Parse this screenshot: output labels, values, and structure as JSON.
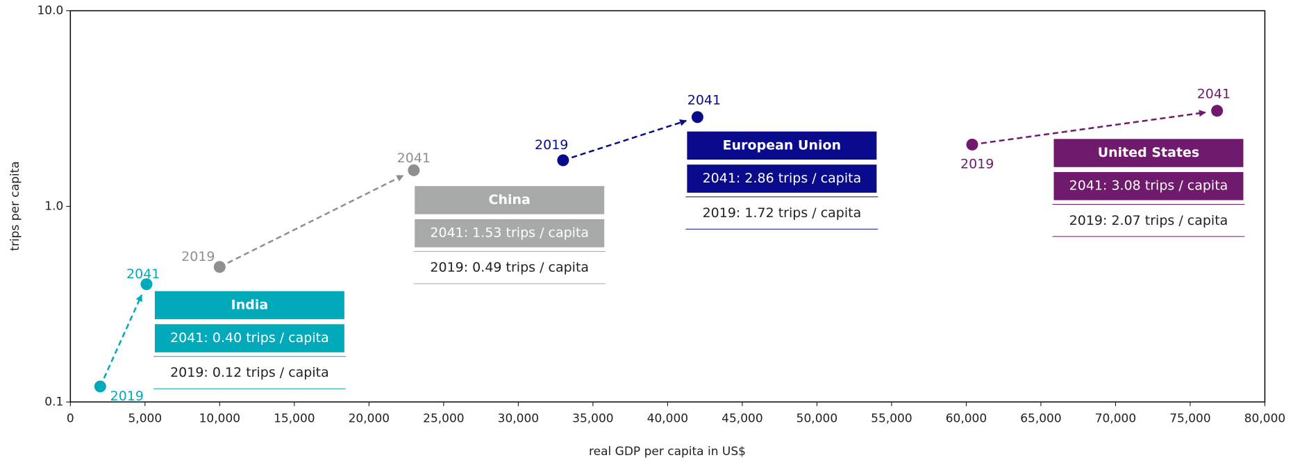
{
  "chart_data": {
    "type": "scatter",
    "x_label": "real GDP per capita in US$",
    "y_label": "trips per capita",
    "xlim": [
      0,
      80000
    ],
    "xticks": [
      0,
      {
        "value": 5000,
        "label": "5,000"
      },
      {
        "value": 10000,
        "label": "10,000"
      },
      {
        "value": 15000,
        "label": "15,000"
      },
      {
        "value": 20000,
        "label": "20,000"
      },
      {
        "value": 25000,
        "label": "25,000"
      },
      {
        "value": 30000,
        "label": "30,000"
      },
      {
        "value": 35000,
        "label": "35,000"
      },
      {
        "value": 40000,
        "label": "40,000"
      },
      {
        "value": 45000,
        "label": "45,000"
      },
      {
        "value": 50000,
        "label": "50,000"
      },
      {
        "value": 55000,
        "label": "55,000"
      },
      {
        "value": 60000,
        "label": "60,000"
      },
      {
        "value": 65000,
        "label": "65,000"
      },
      {
        "value": 70000,
        "label": "70,000"
      },
      {
        "value": 75000,
        "label": "75,000"
      },
      {
        "value": 80000,
        "label": "80,000"
      }
    ],
    "ylim": [
      0.1,
      10
    ],
    "yticks": [
      0.1,
      {
        "value": 1,
        "label": "1.0"
      },
      {
        "value": 10,
        "label": "10.0"
      }
    ],
    "y_scale": "log",
    "series": [
      {
        "name": "India",
        "color": "#00aabb",
        "box_color": "#00aabb",
        "x": [
          2000,
          5100
        ],
        "values": [
          0.12,
          0.4
        ],
        "labels": [
          "2019",
          "2041"
        ],
        "box_lines": [
          "2041: 0.40 trips / capita",
          "2019: 0.12 trips / capita"
        ]
      },
      {
        "name": "China",
        "color": "#8f8f8f",
        "box_color": "#a8aaaa",
        "x": [
          10000,
          23000
        ],
        "values": [
          0.49,
          1.53
        ],
        "labels": [
          "2019",
          "2041"
        ],
        "box_lines": [
          "2041: 1.53 trips / capita",
          "2019: 0.49 trips / capita"
        ]
      },
      {
        "name": "European Union",
        "color": "#0a0a8c",
        "box_color": "#0a0a8c",
        "x": [
          33000,
          42000
        ],
        "values": [
          1.72,
          2.86
        ],
        "labels": [
          "2019",
          "2041"
        ],
        "box_lines": [
          "2041: 2.86 trips / capita",
          "2019: 1.72 trips / capita"
        ]
      },
      {
        "name": "United States",
        "color": "#701a6e",
        "box_color": "#701a6e",
        "x": [
          60400,
          76800
        ],
        "values": [
          2.07,
          3.08
        ],
        "labels": [
          "2019",
          "2041"
        ],
        "box_lines": [
          "2041: 3.08 trips / capita",
          "2019: 2.07 trips / capita"
        ]
      }
    ]
  }
}
